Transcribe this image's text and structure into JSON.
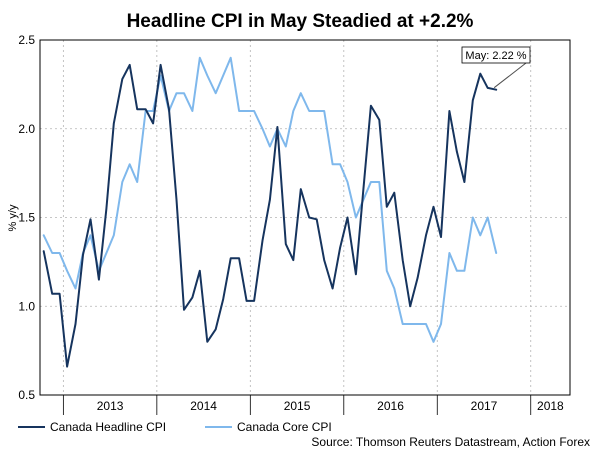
{
  "chart_data": {
    "type": "line",
    "title": "Headline CPI in May Steadied at +2.2%",
    "ylabel": "% y/y",
    "xlabel": "",
    "ylim": [
      0.5,
      2.5
    ],
    "yticks": [
      "0.5",
      "1.0",
      "1.5",
      "2.0",
      "2.5"
    ],
    "x_range": [
      2012.75,
      2018.42
    ],
    "x_year_labels": [
      "2013",
      "2014",
      "2015",
      "2016",
      "2017",
      "2018"
    ],
    "grid": true,
    "legend_placement": "bottom-left",
    "colors": {
      "headline": "#16345e",
      "core": "#7fb8ec",
      "grid": "#b4b4b4",
      "annotation_arrow": "#505050"
    },
    "series": [
      {
        "key": "headline",
        "name": "Canada Headline CPI",
        "points": [
          [
            2012.79,
            1.31
          ],
          [
            2012.88,
            1.07
          ],
          [
            2012.96,
            1.07
          ],
          [
            2013.04,
            0.66
          ],
          [
            2013.13,
            0.9
          ],
          [
            2013.21,
            1.29
          ],
          [
            2013.29,
            1.49
          ],
          [
            2013.38,
            1.15
          ],
          [
            2013.46,
            1.55
          ],
          [
            2013.54,
            2.03
          ],
          [
            2013.63,
            2.28
          ],
          [
            2013.71,
            2.36
          ],
          [
            2013.79,
            2.11
          ],
          [
            2013.88,
            2.11
          ],
          [
            2013.96,
            2.03
          ],
          [
            2014.04,
            2.36
          ],
          [
            2014.13,
            2.11
          ],
          [
            2014.21,
            1.6
          ],
          [
            2014.29,
            0.98
          ],
          [
            2014.38,
            1.05
          ],
          [
            2014.46,
            1.2
          ],
          [
            2014.54,
            0.8
          ],
          [
            2014.63,
            0.87
          ],
          [
            2014.71,
            1.04
          ],
          [
            2014.79,
            1.27
          ],
          [
            2014.88,
            1.27
          ],
          [
            2014.96,
            1.03
          ],
          [
            2015.04,
            1.03
          ],
          [
            2015.13,
            1.37
          ],
          [
            2015.21,
            1.6
          ],
          [
            2015.29,
            2.01
          ],
          [
            2015.38,
            1.35
          ],
          [
            2015.46,
            1.26
          ],
          [
            2015.54,
            1.66
          ],
          [
            2015.63,
            1.5
          ],
          [
            2015.71,
            1.49
          ],
          [
            2015.79,
            1.26
          ],
          [
            2015.88,
            1.1
          ],
          [
            2015.96,
            1.33
          ],
          [
            2016.04,
            1.5
          ],
          [
            2016.13,
            1.18
          ],
          [
            2016.21,
            1.66
          ],
          [
            2016.29,
            2.13
          ],
          [
            2016.38,
            2.05
          ],
          [
            2016.46,
            1.56
          ],
          [
            2016.54,
            1.64
          ],
          [
            2016.63,
            1.26
          ],
          [
            2016.71,
            1.0
          ],
          [
            2016.79,
            1.16
          ],
          [
            2016.88,
            1.4
          ],
          [
            2016.96,
            1.56
          ],
          [
            2017.04,
            1.39
          ],
          [
            2017.13,
            2.1
          ],
          [
            2017.21,
            1.87
          ],
          [
            2017.29,
            1.7
          ],
          [
            2017.38,
            2.16
          ],
          [
            2017.46,
            2.31
          ],
          [
            2017.54,
            2.23
          ],
          [
            2017.63,
            2.22
          ]
        ]
      },
      {
        "key": "core",
        "name": "Canada Core CPI",
        "points": [
          [
            2012.79,
            1.4
          ],
          [
            2012.88,
            1.3
          ],
          [
            2012.96,
            1.3
          ],
          [
            2013.04,
            1.2
          ],
          [
            2013.13,
            1.1
          ],
          [
            2013.21,
            1.3
          ],
          [
            2013.29,
            1.4
          ],
          [
            2013.38,
            1.2
          ],
          [
            2013.46,
            1.3
          ],
          [
            2013.54,
            1.4
          ],
          [
            2013.63,
            1.7
          ],
          [
            2013.71,
            1.8
          ],
          [
            2013.79,
            1.7
          ],
          [
            2013.88,
            2.1
          ],
          [
            2013.96,
            2.1
          ],
          [
            2014.04,
            2.3
          ],
          [
            2014.13,
            2.1
          ],
          [
            2014.21,
            2.2
          ],
          [
            2014.29,
            2.2
          ],
          [
            2014.38,
            2.1
          ],
          [
            2014.46,
            2.4
          ],
          [
            2014.54,
            2.3
          ],
          [
            2014.63,
            2.2
          ],
          [
            2014.71,
            2.3
          ],
          [
            2014.79,
            2.4
          ],
          [
            2014.88,
            2.1
          ],
          [
            2014.96,
            2.1
          ],
          [
            2015.04,
            2.1
          ],
          [
            2015.13,
            2.0
          ],
          [
            2015.21,
            1.9
          ],
          [
            2015.29,
            2.0
          ],
          [
            2015.38,
            1.9
          ],
          [
            2015.46,
            2.1
          ],
          [
            2015.54,
            2.2
          ],
          [
            2015.63,
            2.1
          ],
          [
            2015.71,
            2.1
          ],
          [
            2015.79,
            2.1
          ],
          [
            2015.88,
            1.8
          ],
          [
            2015.96,
            1.8
          ],
          [
            2016.04,
            1.7
          ],
          [
            2016.13,
            1.5
          ],
          [
            2016.21,
            1.6
          ],
          [
            2016.29,
            1.7
          ],
          [
            2016.38,
            1.7
          ],
          [
            2016.46,
            1.2
          ],
          [
            2016.54,
            1.1
          ],
          [
            2016.63,
            0.9
          ],
          [
            2016.71,
            0.9
          ],
          [
            2016.79,
            0.9
          ],
          [
            2016.88,
            0.9
          ],
          [
            2016.96,
            0.8
          ],
          [
            2017.04,
            0.9
          ],
          [
            2017.13,
            1.3
          ],
          [
            2017.21,
            1.2
          ],
          [
            2017.29,
            1.2
          ],
          [
            2017.38,
            1.5
          ],
          [
            2017.46,
            1.4
          ],
          [
            2017.54,
            1.5
          ],
          [
            2017.63,
            1.3
          ]
        ]
      }
    ],
    "annotations": [
      {
        "text": "May: 2.22 %",
        "target": [
          2017.63,
          2.22
        ]
      }
    ],
    "source": "Source: Thomson Reuters Datastream, Action Forex"
  }
}
